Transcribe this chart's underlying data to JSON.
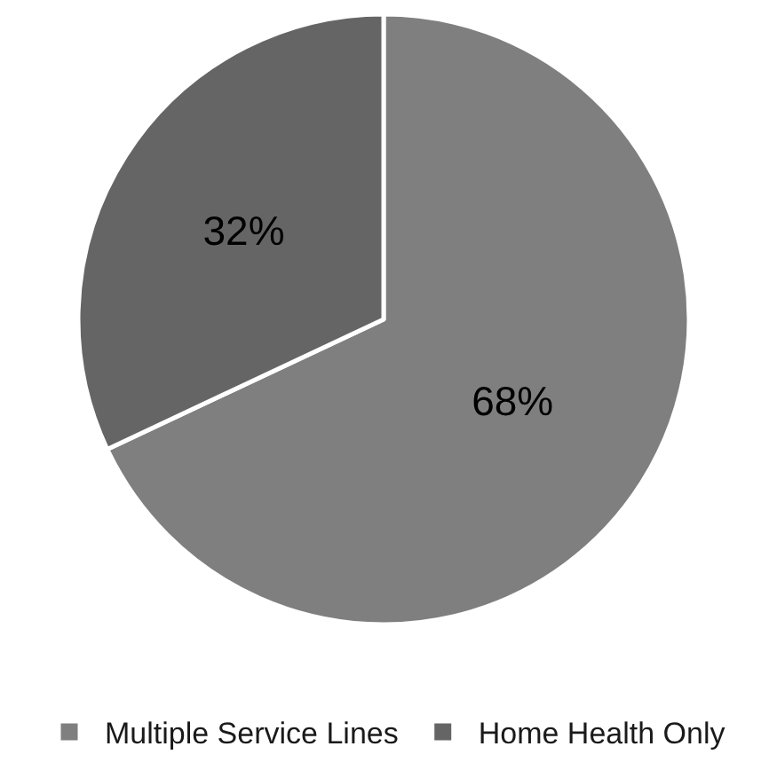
{
  "chart_data": {
    "type": "pie",
    "categories": [
      "Multiple Service Lines",
      "Home Health Only"
    ],
    "values": [
      68,
      32
    ],
    "colors": [
      "#7f7f7f",
      "#656565"
    ],
    "value_labels": [
      "68%",
      "32%"
    ],
    "legend": "bottom"
  }
}
